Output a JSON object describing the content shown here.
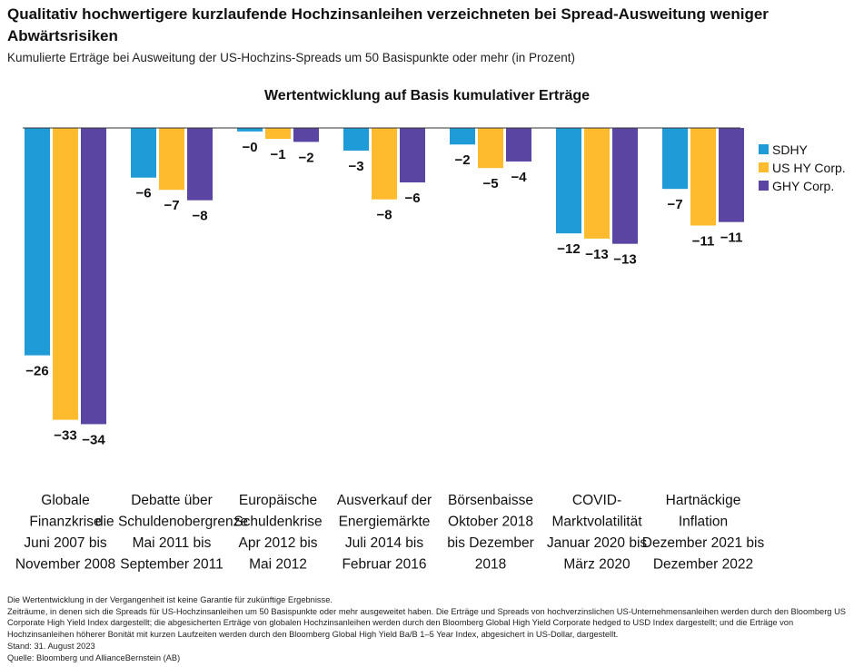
{
  "title": "Qualitativ hochwertigere kurzlaufende Hochzinsanleihen verzeichneten bei Spread-Ausweitung weniger Abwärtsrisiken",
  "subtitle": "Kumulierte Erträge bei Ausweitung der US-Hochzins-Spreads um 50 Basispunkte oder mehr (in Prozent)",
  "chart_data": {
    "type": "bar",
    "title": "Wertentwicklung auf Basis kumulativer Erträge",
    "categories": [
      [
        "Globale",
        "Finanzkrise",
        "Juni 2007 bis",
        "November 2008"
      ],
      [
        "Debatte über",
        "die Schuldenobergrenze",
        "Mai 2011 bis",
        "September 2011"
      ],
      [
        "Europäische",
        "Schuldenkrise",
        "Apr 2012 bis",
        "Mai 2012"
      ],
      [
        "Ausverkauf der",
        "Energiemärkte",
        "Juli 2014 bis",
        "Februar 2016"
      ],
      [
        "Börsenbaisse",
        "Oktober 2018",
        "bis Dezember",
        "2018"
      ],
      [
        "COVID-",
        "Marktvolatilität",
        "Januar 2020 bis",
        "März 2020"
      ],
      [
        "Hartnäckige",
        "Inflation",
        "Dezember 2021 bis",
        "Dezember 2022"
      ]
    ],
    "series": [
      {
        "name": "SDHY",
        "color": "#1f9bd7",
        "values": [
          -26.1,
          -5.7,
          -0.4,
          -2.6,
          -1.9,
          -12.1,
          -7.0
        ],
        "labels": [
          "−26",
          "−6",
          "−0",
          "−3",
          "−2",
          "−12",
          "−7"
        ]
      },
      {
        "name": "US HY Corp.",
        "color": "#fdbb2d",
        "values": [
          -33.5,
          -7.1,
          -1.25,
          -8.2,
          -4.6,
          -12.7,
          -11.2
        ],
        "labels": [
          "−33",
          "−7",
          "−1",
          "−8",
          "−5",
          "−13",
          "−11"
        ]
      },
      {
        "name": "GHY Corp.",
        "color": "#5b45a3",
        "values": [
          -34.0,
          -8.3,
          -1.6,
          -6.25,
          -3.85,
          -13.3,
          -10.8
        ],
        "labels": [
          "−34",
          "−8",
          "−2",
          "−6",
          "−4",
          "−13",
          "−11"
        ]
      }
    ],
    "ylim": [
      -34,
      0
    ],
    "grid": false,
    "legend": "right"
  },
  "footer": [
    "Die Wertentwicklung in der Vergangenheit ist keine Garantie für zukünftige Ergebnisse.",
    "Zeiträume, in denen sich die Spreads für US-Hochzinsanleihen um 50 Basispunkte oder mehr ausgeweitet haben. Die Erträge und Spreads von hochverzinslichen US-Unternehmensanleihen werden durch den Bloomberg US Corporate High Yield Index dargestellt; die abgesicherten Erträge von globalen Hochzinsanleihen werden durch den Bloomberg Global High Yield Corporate hedged to USD Index dargestellt; und die Erträge von Hochzinsanleihen höherer Bonität mit kurzen Laufzeiten werden durch den Bloomberg Global High Yield Ba/B 1–5 Year Index, abgesichert in US-Dollar, dargestellt.",
    "Stand: 31. August 2023",
    "Quelle: Bloomberg und AllianceBernstein (AB)"
  ]
}
